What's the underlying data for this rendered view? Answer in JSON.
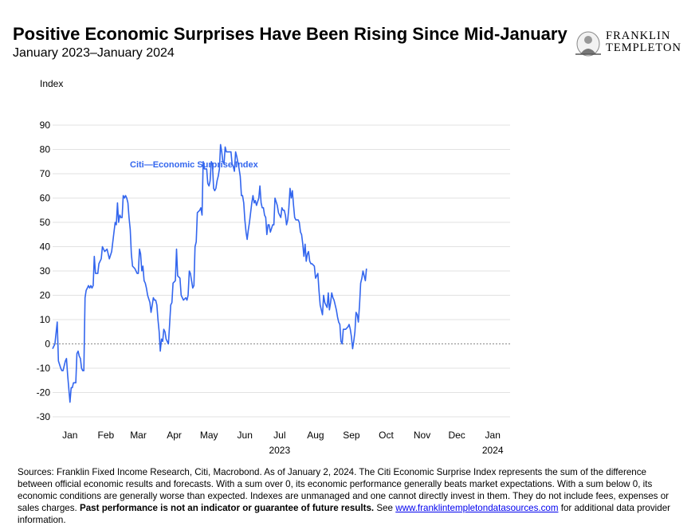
{
  "header": {
    "title": "Positive Economic Surprises Have Been Rising Since Mid-January",
    "subtitle": "January 2023–January 2024"
  },
  "logo": {
    "line1": "FRANKLIN",
    "line2": "TEMPLETON"
  },
  "chart_data": {
    "type": "line",
    "ylabel": "Index",
    "ylim": [
      -30,
      90
    ],
    "yticks": [
      90,
      80,
      70,
      60,
      50,
      40,
      30,
      20,
      10,
      0,
      -10,
      -20,
      -30
    ],
    "xlim": [
      0,
      395
    ],
    "month_ticks": [
      {
        "label": "Jan",
        "x": 15
      },
      {
        "label": "Feb",
        "x": 46
      },
      {
        "label": "Mar",
        "x": 74
      },
      {
        "label": "Apr",
        "x": 105
      },
      {
        "label": "May",
        "x": 135
      },
      {
        "label": "Jun",
        "x": 166
      },
      {
        "label": "Jul",
        "x": 196
      },
      {
        "label": "Aug",
        "x": 227
      },
      {
        "label": "Sep",
        "x": 258
      },
      {
        "label": "Oct",
        "x": 288
      },
      {
        "label": "Nov",
        "x": 319
      },
      {
        "label": "Dec",
        "x": 349
      },
      {
        "label": "Jan",
        "x": 380
      }
    ],
    "year_labels": [
      {
        "label": "2023",
        "x": 196
      },
      {
        "label": "2024",
        "x": 380
      }
    ],
    "grid": true,
    "zero_line": "dashed",
    "series": [
      {
        "name": "Citi—Economic Surprise Index",
        "color": "#3366ee",
        "points": [
          [
            0,
            -2
          ],
          [
            2,
            0
          ],
          [
            4,
            9
          ],
          [
            5,
            -7
          ],
          [
            7,
            -10
          ],
          [
            8,
            -11
          ],
          [
            9,
            -11
          ],
          [
            11,
            -7
          ],
          [
            12,
            -6
          ],
          [
            13,
            -13
          ],
          [
            15,
            -24
          ],
          [
            16,
            -18
          ],
          [
            17,
            -18
          ],
          [
            18,
            -16
          ],
          [
            20,
            -16
          ],
          [
            21,
            -4
          ],
          [
            22,
            -3
          ],
          [
            23,
            -5
          ],
          [
            24,
            -6
          ],
          [
            25,
            -10
          ],
          [
            26,
            -11
          ],
          [
            27,
            -11
          ],
          [
            28,
            19
          ],
          [
            29,
            22
          ],
          [
            30,
            23
          ],
          [
            31,
            24
          ],
          [
            32,
            23
          ],
          [
            33,
            24
          ],
          [
            34,
            23
          ],
          [
            35,
            24
          ],
          [
            36,
            36
          ],
          [
            37,
            29
          ],
          [
            39,
            29
          ],
          [
            40,
            33
          ],
          [
            42,
            35
          ],
          [
            43,
            40
          ],
          [
            44,
            39
          ],
          [
            45,
            38
          ],
          [
            47,
            39
          ],
          [
            49,
            35
          ],
          [
            51,
            38
          ],
          [
            53,
            46
          ],
          [
            54,
            50
          ],
          [
            55,
            49
          ],
          [
            56,
            58
          ],
          [
            57,
            50
          ],
          [
            58,
            53
          ],
          [
            59,
            52
          ],
          [
            60,
            52
          ],
          [
            61,
            61
          ],
          [
            62,
            60
          ],
          [
            63,
            61
          ],
          [
            64,
            60
          ],
          [
            65,
            58
          ],
          [
            66,
            52
          ],
          [
            67,
            47
          ],
          [
            68,
            37
          ],
          [
            69,
            32
          ],
          [
            71,
            31
          ],
          [
            73,
            29
          ],
          [
            74,
            29
          ],
          [
            75,
            39
          ],
          [
            76,
            37
          ],
          [
            77,
            30
          ],
          [
            78,
            32
          ],
          [
            79,
            26
          ],
          [
            80,
            25
          ],
          [
            81,
            23
          ],
          [
            82,
            20
          ],
          [
            84,
            17
          ],
          [
            85,
            13
          ],
          [
            86,
            16
          ],
          [
            87,
            19
          ],
          [
            88,
            18
          ],
          [
            89,
            18
          ],
          [
            90,
            16
          ],
          [
            91,
            10
          ],
          [
            92,
            5
          ],
          [
            93,
            -3
          ],
          [
            94,
            2
          ],
          [
            95,
            1
          ],
          [
            96,
            6
          ],
          [
            97,
            5
          ],
          [
            98,
            2
          ],
          [
            100,
            0
          ],
          [
            101,
            8
          ],
          [
            102,
            16
          ],
          [
            103,
            17
          ],
          [
            104,
            25
          ],
          [
            106,
            26
          ],
          [
            107,
            39
          ],
          [
            108,
            28
          ],
          [
            110,
            27
          ],
          [
            111,
            20
          ],
          [
            112,
            19
          ],
          [
            113,
            18
          ],
          [
            115,
            19
          ],
          [
            116,
            18
          ],
          [
            117,
            20
          ],
          [
            118,
            30
          ],
          [
            119,
            29
          ],
          [
            121,
            23
          ],
          [
            122,
            24
          ],
          [
            123,
            40
          ],
          [
            124,
            42
          ],
          [
            125,
            54
          ],
          [
            127,
            55
          ],
          [
            128,
            56
          ],
          [
            129,
            53
          ],
          [
            130,
            75
          ],
          [
            131,
            72
          ],
          [
            133,
            72
          ],
          [
            134,
            66
          ],
          [
            135,
            65
          ],
          [
            136,
            67
          ],
          [
            137,
            75
          ],
          [
            138,
            74
          ],
          [
            139,
            64
          ],
          [
            140,
            63
          ],
          [
            141,
            64
          ],
          [
            142,
            67
          ],
          [
            143,
            69
          ],
          [
            144,
            72
          ],
          [
            145,
            82
          ],
          [
            146,
            79
          ],
          [
            147,
            75
          ],
          [
            148,
            74
          ],
          [
            149,
            81
          ],
          [
            150,
            79
          ],
          [
            151,
            79
          ],
          [
            153,
            79
          ],
          [
            154,
            79
          ],
          [
            155,
            74
          ],
          [
            156,
            73
          ],
          [
            157,
            71
          ],
          [
            158,
            79
          ],
          [
            159,
            77
          ],
          [
            161,
            72
          ],
          [
            162,
            69
          ],
          [
            163,
            61
          ],
          [
            164,
            61
          ],
          [
            165,
            58
          ],
          [
            166,
            51
          ],
          [
            167,
            46
          ],
          [
            168,
            43
          ],
          [
            169,
            47
          ],
          [
            170,
            50
          ],
          [
            172,
            58
          ],
          [
            173,
            61
          ],
          [
            174,
            58
          ],
          [
            175,
            59
          ],
          [
            176,
            57
          ],
          [
            178,
            60
          ],
          [
            179,
            65
          ],
          [
            180,
            58
          ],
          [
            181,
            56
          ],
          [
            182,
            56
          ],
          [
            183,
            53
          ],
          [
            184,
            52
          ],
          [
            185,
            45
          ],
          [
            186,
            49
          ],
          [
            187,
            49
          ],
          [
            188,
            46
          ],
          [
            190,
            49
          ],
          [
            191,
            49
          ],
          [
            192,
            60
          ],
          [
            194,
            57
          ],
          [
            195,
            54
          ],
          [
            196,
            53
          ],
          [
            197,
            52
          ],
          [
            198,
            56
          ],
          [
            199,
            55
          ],
          [
            200,
            55
          ],
          [
            201,
            53
          ],
          [
            202,
            49
          ],
          [
            203,
            51
          ],
          [
            204,
            56
          ],
          [
            205,
            64
          ],
          [
            206,
            60
          ],
          [
            207,
            63
          ],
          [
            208,
            57
          ],
          [
            209,
            52
          ],
          [
            210,
            51
          ],
          [
            212,
            51
          ],
          [
            213,
            50
          ],
          [
            214,
            46
          ],
          [
            215,
            45
          ],
          [
            216,
            41
          ],
          [
            217,
            36
          ],
          [
            218,
            41
          ],
          [
            219,
            34
          ],
          [
            220,
            37
          ],
          [
            221,
            38
          ],
          [
            222,
            34
          ],
          [
            223,
            33
          ],
          [
            224,
            33
          ],
          [
            226,
            32
          ],
          [
            227,
            27
          ],
          [
            228,
            28
          ],
          [
            229,
            29
          ],
          [
            230,
            22
          ],
          [
            231,
            16
          ],
          [
            233,
            12
          ],
          [
            234,
            20
          ],
          [
            235,
            17
          ],
          [
            236,
            16
          ],
          [
            237,
            15
          ],
          [
            238,
            21
          ],
          [
            239,
            14
          ],
          [
            240,
            17
          ],
          [
            241,
            21
          ],
          [
            242,
            19
          ],
          [
            243,
            18
          ],
          [
            245,
            14
          ],
          [
            246,
            11
          ],
          [
            247,
            9
          ],
          [
            248,
            8
          ],
          [
            249,
            1
          ],
          [
            250,
            0
          ],
          [
            251,
            6
          ],
          [
            252,
            6
          ],
          [
            253,
            6
          ],
          [
            255,
            7
          ],
          [
            256,
            8
          ],
          [
            257,
            6
          ],
          [
            258,
            3
          ],
          [
            259,
            -2
          ],
          [
            260,
            1
          ],
          [
            261,
            5
          ],
          [
            262,
            13
          ],
          [
            263,
            12
          ],
          [
            264,
            9
          ],
          [
            265,
            16
          ],
          [
            266,
            25
          ],
          [
            267,
            27
          ],
          [
            268,
            30
          ],
          [
            269,
            28
          ],
          [
            270,
            26
          ],
          [
            271,
            31
          ]
        ]
      }
    ]
  },
  "legend": {
    "label": "Citi—Economic Surprise Index"
  },
  "footnote": {
    "text_before": "Sources: Franklin Fixed Income Research, Citi, Macrobond. As of January 2, 2024. The Citi Economic Surprise Index represents the sum of the difference between official economic results and forecasts. With a sum over 0, its economic performance generally beats market expectations. With a sum below 0, its economic conditions are generally worse than expected. Indexes are unmanaged and one cannot directly invest in them. They do not include fees, expenses or sales charges. ",
    "bold": "Past performance is not an indicator or guarantee of future results.",
    "see": " See ",
    "link": "www.franklintempletondatasources.com",
    "text_after": " for additional data provider information."
  }
}
